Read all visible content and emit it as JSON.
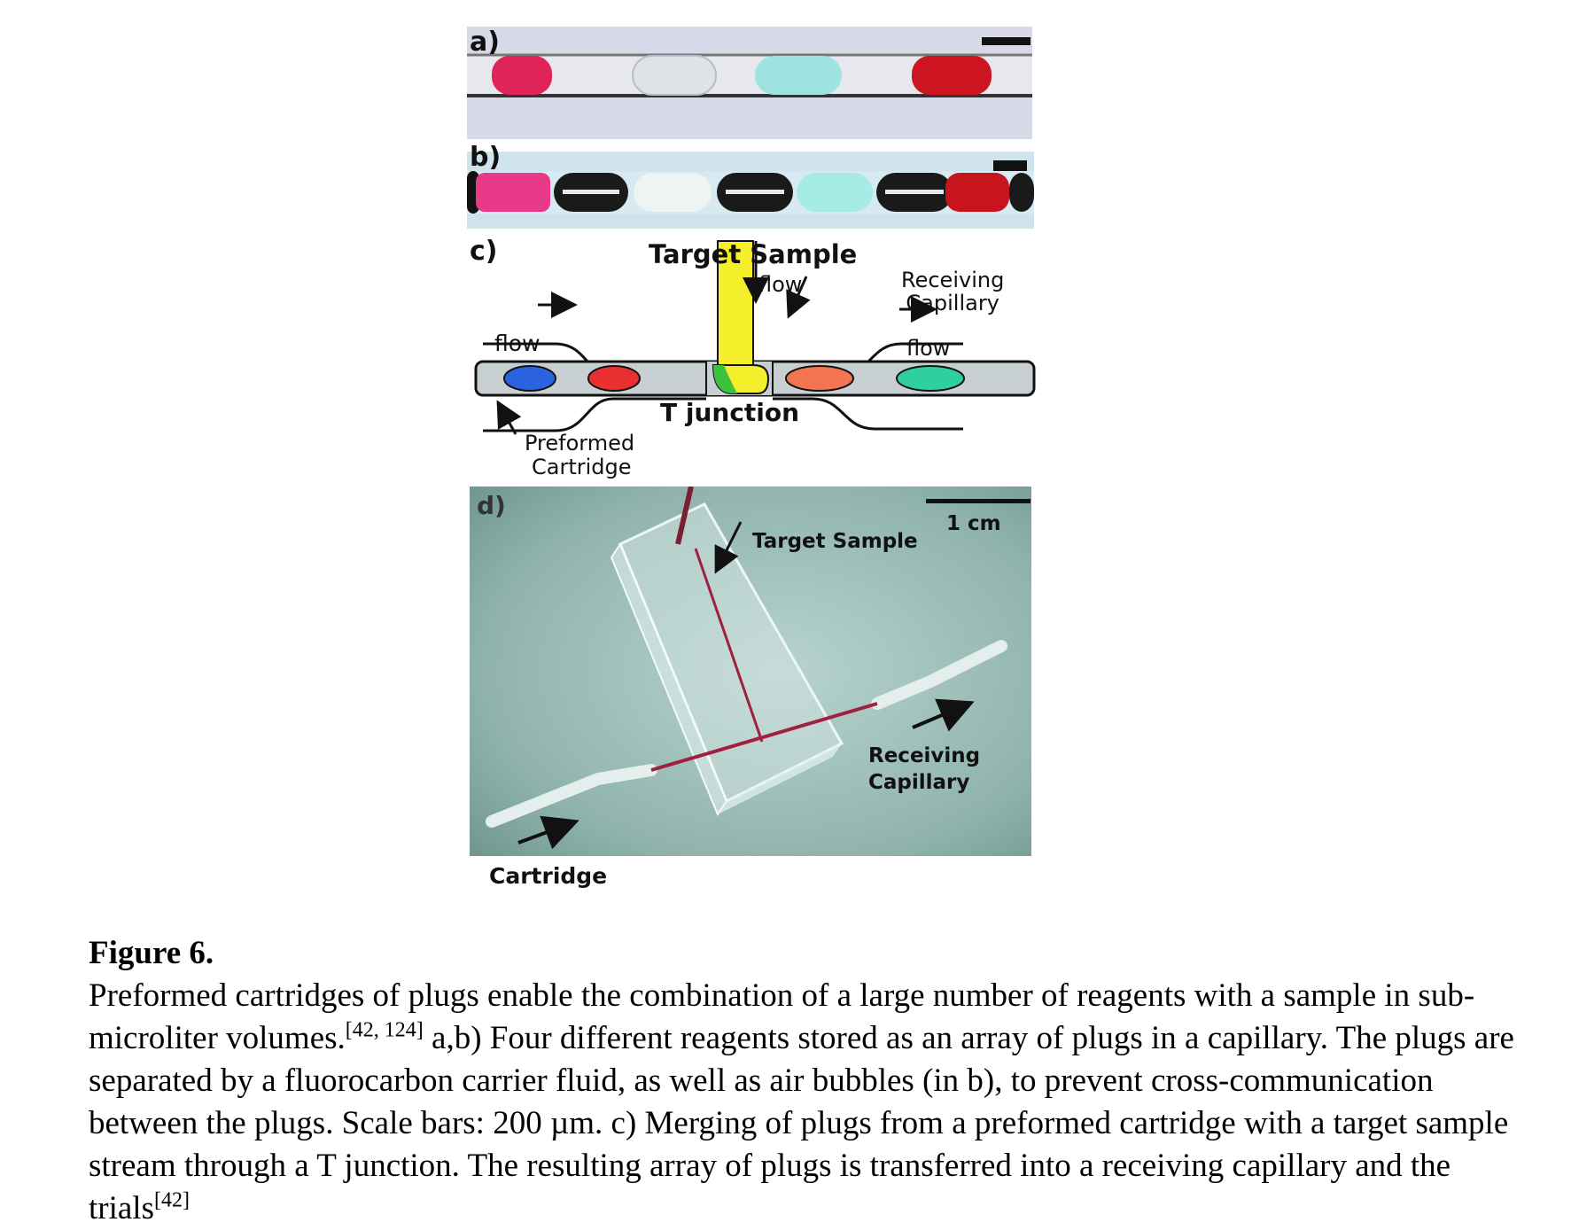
{
  "panels": {
    "a": {
      "label": "a)"
    },
    "b": {
      "label": "b)"
    },
    "c": {
      "label": "c)",
      "target_sample": "Target Sample",
      "flow_top": "flow",
      "receiving_capillary_line1": "Receiving",
      "receiving_capillary_line2": "Capillary",
      "flow_left": "flow",
      "flow_right": "flow",
      "t_junction": "T junction",
      "preformed_cartridge_line1": "Preformed",
      "preformed_cartridge_line2": "Cartridge"
    },
    "d": {
      "label": "d)",
      "scale": "1 cm",
      "target_sample": "Target Sample",
      "receiving_capillary_line1": "Receiving",
      "receiving_capillary_line2": "Capillary",
      "cartridge": "Cartridge"
    }
  },
  "caption": {
    "title": "Figure 6.",
    "text_1": "Preformed cartridges of plugs enable the combination of a large number of reagents with a sample in sub-microliter volumes.",
    "ref_1": "[42, 124]",
    "text_2": " a,b) Four different reagents stored as an array of plugs in a capillary. The plugs are separated by a fluorocarbon carrier fluid, as well as air bubbles (in b), to prevent cross-communication between the plugs. Scale bars: 200 µm. c) Merging of plugs from a preformed cartridge with a target sample stream through a T junction. The resulting array of plugs is transferred into a receiving capillary and the trials",
    "ref_2": "[42]"
  },
  "colors": {
    "plug_pink": "#e0245a",
    "plug_clear": "#dfe6ea",
    "plug_cyan": "#8fe0dc",
    "plug_red": "#c8141c",
    "carrier_bg": "#d6d7e6",
    "yellow_sample": "#f4ef2a",
    "green_merge": "#3cc23c",
    "blue_plug": "#2a62e0",
    "orange_plug": "#f07050",
    "teal_plug": "#2ed0a0",
    "photo_bg": "#8fb3ac"
  }
}
